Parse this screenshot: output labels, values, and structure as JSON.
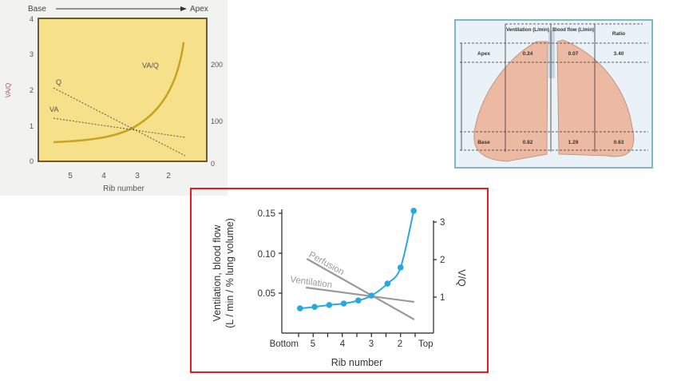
{
  "figure_left": {
    "top_left_label": "Base",
    "top_right_label": "Apex",
    "left_axis_ticks": [
      "0",
      "1",
      "2",
      "3",
      "4"
    ],
    "right_axis_ticks": [
      "0",
      "100",
      "200"
    ],
    "x_ticks": [
      "5",
      "4",
      "3",
      "2"
    ],
    "xlabel": "Rib number",
    "left_axis_label": "VA/Q",
    "curve_labels": {
      "ratio": "VA/Q",
      "perfusion": "Q",
      "ventilation": "VA"
    }
  },
  "figure_right": {
    "headers": [
      "Ventilation (L/min)",
      "Blood flow (L/min)",
      "Ratio"
    ],
    "rows": [
      {
        "label": "Apex",
        "ventilation": "0.24",
        "blood_flow": "0.07",
        "ratio": "3.40"
      },
      {
        "label": "Base",
        "ventilation": "0.82",
        "blood_flow": "1.29",
        "ratio": "0.63"
      }
    ]
  },
  "chart_data": {
    "type": "line",
    "xlabel": "Rib number",
    "ylabel": "Ventilation, blood flow (L / min / % lung volume)",
    "ylabel_line1": "Ventilation, blood flow",
    "ylabel_line2": "(L / min / % lung volume)",
    "y2label": "V/Q",
    "x_tick_labels": [
      {
        "x": 5.5,
        "label": "Bottom"
      },
      {
        "x": 5,
        "label": "5"
      },
      {
        "x": 4,
        "label": "4"
      },
      {
        "x": 3,
        "label": "3"
      },
      {
        "x": 2,
        "label": "2"
      },
      {
        "x": 1.5,
        "label": "Top"
      }
    ],
    "x_minor_ticks": [
      4.5,
      3.5,
      2.5
    ],
    "ylim": [
      0,
      0.16
    ],
    "y_ticks": [
      "0.05",
      "0.10",
      "0.15"
    ],
    "y2lim": [
      0,
      3.3
    ],
    "y2_ticks": [
      "1",
      "2",
      "3"
    ],
    "series": [
      {
        "name": "Perfusion",
        "axis": "left",
        "color": "#9a9a9a",
        "x": [
          5.22,
          1.53
        ],
        "y": [
          0.093,
          0.017
        ]
      },
      {
        "name": "Ventilation",
        "axis": "left",
        "color": "#9a9a9a",
        "x": [
          5.25,
          1.53
        ],
        "y": [
          0.057,
          0.039
        ]
      },
      {
        "name": "V/Q",
        "axis": "right",
        "color": "#29a8e0",
        "x": [
          5.45,
          4.95,
          4.45,
          3.95,
          3.45,
          3.0,
          2.45,
          2.0,
          1.55
        ],
        "y": [
          0.7,
          0.74,
          0.79,
          0.83,
          0.91,
          1.04,
          1.36,
          1.79,
          3.3
        ]
      }
    ]
  }
}
